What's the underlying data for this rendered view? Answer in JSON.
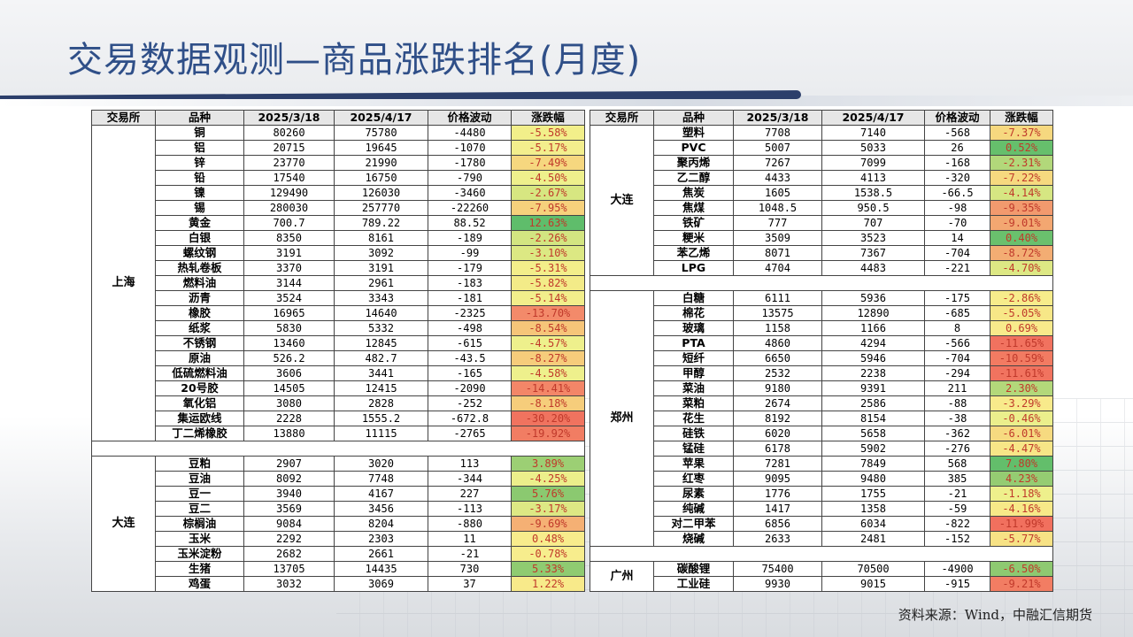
{
  "title": "交易数据观测—商品涨跌排名(月度)",
  "source": "资料来源：Wind，中融汇信期货",
  "headers": [
    "交易所",
    "品种",
    "2025/3/18",
    "2025/4/17",
    "价格波动",
    "涨跌幅"
  ],
  "left_groups": [
    {
      "exchange": "上海",
      "rows": [
        [
          "铜",
          "80260",
          "75780",
          "-4480",
          "-5.58%",
          "#f2ef8a",
          "#c0392b"
        ],
        [
          "铝",
          "20715",
          "19645",
          "-1070",
          "-5.17%",
          "#f3ee8d",
          "#c0392b"
        ],
        [
          "锌",
          "23770",
          "21990",
          "-1780",
          "-7.49%",
          "#f6d77f",
          "#c0392b"
        ],
        [
          "铅",
          "17540",
          "16750",
          "-790",
          "-4.50%",
          "#eef08c",
          "#c0392b"
        ],
        [
          "镍",
          "129490",
          "126030",
          "-3460",
          "-2.67%",
          "#d7e681",
          "#c0392b"
        ],
        [
          "锡",
          "280030",
          "257770",
          "-22260",
          "-7.95%",
          "#f6d17c",
          "#c0392b"
        ],
        [
          "黄金",
          "700.7",
          "789.22",
          "88.52",
          "12.63%",
          "#5fbd6b",
          "#c0392b"
        ],
        [
          "白银",
          "8350",
          "8161",
          "-189",
          "-2.26%",
          "#d3e581",
          "#c0392b"
        ],
        [
          "螺纹钢",
          "3191",
          "3092",
          "-99",
          "-3.10%",
          "#dce883",
          "#c0392b"
        ],
        [
          "热轧卷板",
          "3370",
          "3191",
          "-179",
          "-5.31%",
          "#f3ee8a",
          "#c0392b"
        ],
        [
          "燃料油",
          "3144",
          "2961",
          "-183",
          "-5.82%",
          "#f3eb88",
          "#c0392b"
        ],
        [
          "沥青",
          "3524",
          "3343",
          "-181",
          "-5.14%",
          "#f2ee8b",
          "#c0392b"
        ],
        [
          "橡胶",
          "16965",
          "14640",
          "-2325",
          "-13.70%",
          "#f38a6a",
          "#c0392b"
        ],
        [
          "纸浆",
          "5830",
          "5332",
          "-498",
          "-8.54%",
          "#f6c579",
          "#c0392b"
        ],
        [
          "不锈钢",
          "13460",
          "12845",
          "-615",
          "-4.57%",
          "#eef08c",
          "#c0392b"
        ],
        [
          "原油",
          "526.2",
          "482.7",
          "-43.5",
          "-8.27%",
          "#f6cc7b",
          "#c0392b"
        ],
        [
          "低硫燃料油",
          "3606",
          "3441",
          "-165",
          "-4.58%",
          "#eef08c",
          "#c0392b"
        ],
        [
          "20号胶",
          "14505",
          "12415",
          "-2090",
          "-14.41%",
          "#f38668",
          "#c0392b"
        ],
        [
          "氧化铝",
          "3080",
          "2828",
          "-252",
          "-8.18%",
          "#f6cd7b",
          "#c0392b"
        ],
        [
          "集运欧线",
          "2228",
          "1555.2",
          "-672.8",
          "-30.20%",
          "#f0735f",
          "#c0392b"
        ],
        [
          "丁二烯橡胶",
          "13880",
          "11115",
          "-2765",
          "-19.92%",
          "#f17d63",
          "#c0392b"
        ]
      ]
    },
    {
      "exchange": "大连",
      "rows": [
        [
          "豆粕",
          "2907",
          "3020",
          "113",
          "3.89%",
          "#9ccf74",
          "#c0392b"
        ],
        [
          "豆油",
          "8092",
          "7748",
          "-344",
          "-4.25%",
          "#ecef8b",
          "#c0392b"
        ],
        [
          "豆一",
          "3940",
          "4167",
          "227",
          "5.76%",
          "#8bc970",
          "#c0392b"
        ],
        [
          "豆二",
          "3569",
          "3456",
          "-113",
          "-3.17%",
          "#dde884",
          "#c0392b"
        ],
        [
          "棕榈油",
          "9084",
          "8204",
          "-880",
          "-9.69%",
          "#f5b074",
          "#c0392b"
        ],
        [
          "玉米",
          "2292",
          "2303",
          "11",
          "0.48%",
          "#f8ec8c",
          "#c0392b"
        ],
        [
          "玉米淀粉",
          "2682",
          "2661",
          "-21",
          "-0.78%",
          "#f7ed8d",
          "#c0392b"
        ],
        [
          "生猪",
          "13705",
          "14435",
          "730",
          "5.33%",
          "#8fcb71",
          "#c0392b"
        ],
        [
          "鸡蛋",
          "3032",
          "3069",
          "37",
          "1.22%",
          "#f8ea8a",
          "#c0392b"
        ]
      ]
    }
  ],
  "right_groups": [
    {
      "exchange": "大连",
      "rows": [
        [
          "塑料",
          "7708",
          "7140",
          "-568",
          "-7.37%",
          "#f6d87f",
          "#c0392b"
        ],
        [
          "PVC",
          "5007",
          "5033",
          "26",
          "0.52%",
          "#66bf6c",
          "#c0392b"
        ],
        [
          "聚丙烯",
          "7267",
          "7099",
          "-168",
          "-2.31%",
          "#b2d87a",
          "#c0392b"
        ],
        [
          "乙二醇",
          "4433",
          "4113",
          "-320",
          "-7.22%",
          "#f6d97f",
          "#c0392b"
        ],
        [
          "焦炭",
          "1605",
          "1538.5",
          "-66.5",
          "-4.14%",
          "#d6e682",
          "#c0392b"
        ],
        [
          "焦煤",
          "1048.5",
          "950.5",
          "-98",
          "-9.35%",
          "#f29a6e",
          "#c0392b"
        ],
        [
          "铁矿",
          "777",
          "707",
          "-70",
          "-9.01%",
          "#f3a771",
          "#c0392b"
        ],
        [
          "粳米",
          "3509",
          "3523",
          "14",
          "0.40%",
          "#6ac06d",
          "#c0392b"
        ],
        [
          "苯乙烯",
          "8071",
          "7367",
          "-704",
          "-8.72%",
          "#f3ad73",
          "#c0392b"
        ],
        [
          "LPG",
          "4704",
          "4483",
          "-221",
          "-4.70%",
          "#dde884",
          "#c0392b"
        ]
      ]
    },
    {
      "exchange": "郑州",
      "rows": [
        [
          "白糖",
          "6111",
          "5936",
          "-175",
          "-2.86%",
          "#f7ec8b",
          "#c0392b"
        ],
        [
          "棉花",
          "13575",
          "12890",
          "-685",
          "-5.05%",
          "#f7e787",
          "#c0392b"
        ],
        [
          "玻璃",
          "1158",
          "1166",
          "8",
          "0.69%",
          "#f8ea8b",
          "#c0392b"
        ],
        [
          "PTA",
          "4860",
          "4294",
          "-566",
          "-11.65%",
          "#f1725f",
          "#c0392b"
        ],
        [
          "短纤",
          "6650",
          "5946",
          "-704",
          "-10.59%",
          "#f27b62",
          "#c0392b"
        ],
        [
          "甲醇",
          "2532",
          "2238",
          "-294",
          "-11.61%",
          "#f1735f",
          "#c0392b"
        ],
        [
          "菜油",
          "9180",
          "9391",
          "211",
          "2.30%",
          "#b3d87a",
          "#c0392b"
        ],
        [
          "菜粕",
          "2674",
          "2586",
          "-88",
          "-3.29%",
          "#f8ea8b",
          "#c0392b"
        ],
        [
          "花生",
          "8192",
          "8154",
          "-38",
          "-0.46%",
          "#ebef8c",
          "#c0392b"
        ],
        [
          "硅铁",
          "6020",
          "5658",
          "-362",
          "-6.01%",
          "#f6da80",
          "#c0392b"
        ],
        [
          "锰硅",
          "6178",
          "5902",
          "-276",
          "-4.47%",
          "#f7e687",
          "#c0392b"
        ],
        [
          "苹果",
          "7281",
          "7849",
          "568",
          "7.80%",
          "#63be6b",
          "#c0392b"
        ],
        [
          "红枣",
          "9095",
          "9480",
          "385",
          "4.23%",
          "#95cc72",
          "#c0392b"
        ],
        [
          "尿素",
          "1776",
          "1755",
          "-21",
          "-1.18%",
          "#eef08c",
          "#c0392b"
        ],
        [
          "纯碱",
          "1417",
          "1358",
          "-59",
          "-4.16%",
          "#f7e988",
          "#c0392b"
        ],
        [
          "对二甲苯",
          "6856",
          "6034",
          "-822",
          "-11.99%",
          "#f1705e",
          "#c0392b"
        ],
        [
          "烧碱",
          "2633",
          "2481",
          "-152",
          "-5.77%",
          "#f7e285",
          "#c0392b"
        ]
      ]
    },
    {
      "exchange": "广州",
      "rows": [
        [
          "碳酸锂",
          "75400",
          "70500",
          "-4900",
          "-6.50%",
          "#8ec971",
          "#c0392b"
        ],
        [
          "工业硅",
          "9930",
          "9015",
          "-915",
          "-9.21%",
          "#f27d63",
          "#c0392b"
        ]
      ]
    }
  ]
}
